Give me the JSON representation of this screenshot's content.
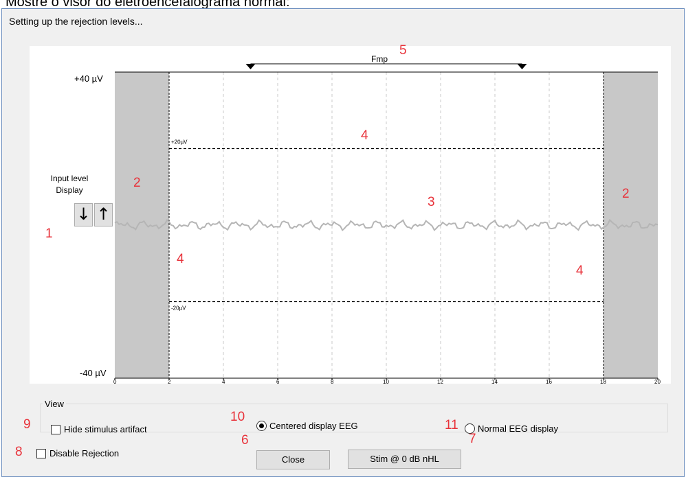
{
  "caption": "Mostre o visor do eletroencefalograma normal:",
  "window": {
    "title": "Setting up the rejection levels..."
  },
  "plot": {
    "y_top_label": "+40 µV",
    "y_bottom_label": "-40 µV",
    "fmp_label": "Fmp",
    "upper_level_label": "+20µV",
    "lower_level_label": "-20µV",
    "x_ticks": [
      "0",
      "2",
      "4",
      "6",
      "8",
      "10",
      "12",
      "14",
      "16",
      "18",
      "20"
    ]
  },
  "input_level": {
    "label_line1": "Input level",
    "label_line2": "Display",
    "down": "↓",
    "up": "↑"
  },
  "markers": {
    "m1": "1",
    "m2a": "2",
    "m2b": "2",
    "m3": "3",
    "m4a": "4",
    "m4b": "4",
    "m4c": "4",
    "m5": "5",
    "m6": "6",
    "m7": "7",
    "m8": "8",
    "m9": "9",
    "m10": "10",
    "m11": "11"
  },
  "view": {
    "title": "View",
    "hide_stimulus": "Hide stimulus artifact",
    "centered": "Centered display EEG",
    "normal": "Normal EEG display"
  },
  "disable_rejection": "Disable Rejection",
  "buttons": {
    "close": "Close",
    "stim": "Stim @ 0 dB nHL"
  },
  "chart_data": {
    "type": "line",
    "x_range": [
      0,
      20
    ],
    "y_range": [
      -40,
      40
    ],
    "rejection_levels": [
      20,
      -20
    ],
    "rejection_window": [
      2,
      18
    ],
    "fmp_window": [
      5,
      15
    ],
    "shaded_regions": [
      [
        0,
        2
      ],
      [
        18,
        20
      ]
    ]
  }
}
